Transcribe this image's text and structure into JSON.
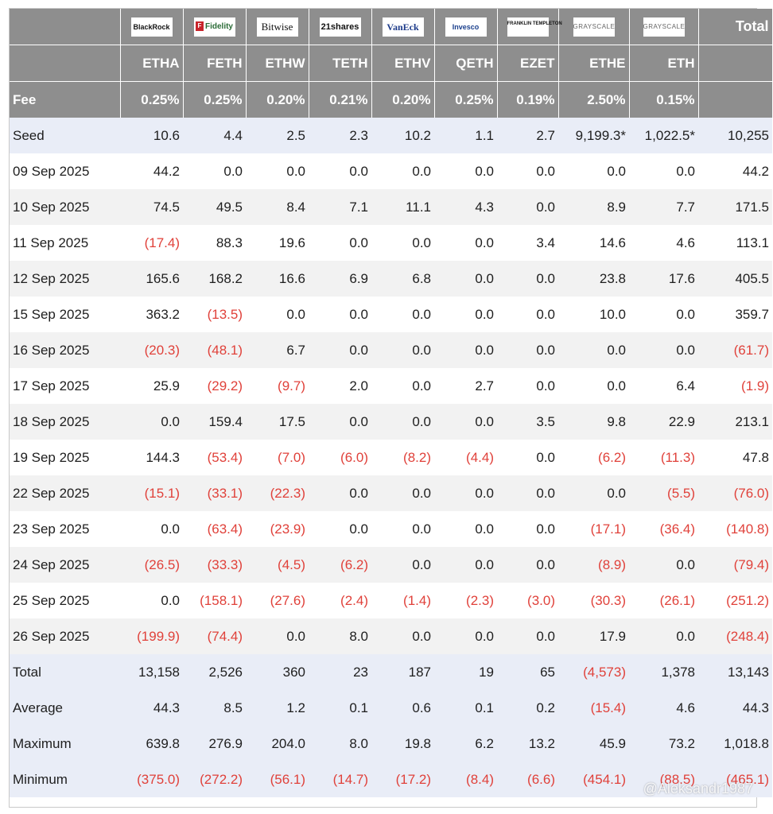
{
  "columns": [
    {
      "logo": "BlackRock",
      "logo_class": "blackrock",
      "ticker": "ETHA",
      "fee": "0.25%"
    },
    {
      "logo": "Fidelity",
      "logo_class": "fidelity",
      "ticker": "FETH",
      "fee": "0.25%"
    },
    {
      "logo": "Bitwise",
      "logo_class": "bitwise",
      "ticker": "ETHW",
      "fee": "0.20%"
    },
    {
      "logo": "21shares",
      "logo_class": "shares",
      "ticker": "TETH",
      "fee": "0.21%"
    },
    {
      "logo": "VanEck",
      "logo_class": "vaneck",
      "ticker": "ETHV",
      "fee": "0.20%"
    },
    {
      "logo": "Invesco",
      "logo_class": "invesco",
      "ticker": "QETH",
      "fee": "0.25%"
    },
    {
      "logo": "FRANKLIN TEMPLETON",
      "logo_class": "franklin",
      "ticker": "EZET",
      "fee": "0.19%"
    },
    {
      "logo": "GRAYSCALE",
      "logo_class": "grayscale",
      "ticker": "ETHE",
      "fee": "2.50%"
    },
    {
      "logo": "GRAYSCALE",
      "logo_class": "grayscale",
      "ticker": "ETH",
      "fee": "0.15%"
    }
  ],
  "header": {
    "total_label": "Total",
    "fee_label": "Fee"
  },
  "rows": [
    {
      "label": "Seed",
      "style": "hl",
      "values": [
        "10.6",
        "4.4",
        "2.5",
        "2.3",
        "10.2",
        "1.1",
        "2.7",
        "9,199.3*",
        "1,022.5*",
        "10,255"
      ]
    },
    {
      "label": "09 Sep 2025",
      "style": "even",
      "values": [
        "44.2",
        "0.0",
        "0.0",
        "0.0",
        "0.0",
        "0.0",
        "0.0",
        "0.0",
        "0.0",
        "44.2"
      ]
    },
    {
      "label": "10 Sep 2025",
      "style": "odd",
      "values": [
        "74.5",
        "49.5",
        "8.4",
        "7.1",
        "11.1",
        "4.3",
        "0.0",
        "8.9",
        "7.7",
        "171.5"
      ]
    },
    {
      "label": "11 Sep 2025",
      "style": "even",
      "values": [
        "(17.4)",
        "88.3",
        "19.6",
        "0.0",
        "0.0",
        "0.0",
        "3.4",
        "14.6",
        "4.6",
        "113.1"
      ]
    },
    {
      "label": "12 Sep 2025",
      "style": "odd",
      "values": [
        "165.6",
        "168.2",
        "16.6",
        "6.9",
        "6.8",
        "0.0",
        "0.0",
        "23.8",
        "17.6",
        "405.5"
      ]
    },
    {
      "label": "15 Sep 2025",
      "style": "even",
      "values": [
        "363.2",
        "(13.5)",
        "0.0",
        "0.0",
        "0.0",
        "0.0",
        "0.0",
        "10.0",
        "0.0",
        "359.7"
      ]
    },
    {
      "label": "16 Sep 2025",
      "style": "odd",
      "values": [
        "(20.3)",
        "(48.1)",
        "6.7",
        "0.0",
        "0.0",
        "0.0",
        "0.0",
        "0.0",
        "0.0",
        "(61.7)"
      ]
    },
    {
      "label": "17 Sep 2025",
      "style": "even",
      "values": [
        "25.9",
        "(29.2)",
        "(9.7)",
        "2.0",
        "0.0",
        "2.7",
        "0.0",
        "0.0",
        "6.4",
        "(1.9)"
      ]
    },
    {
      "label": "18 Sep 2025",
      "style": "odd",
      "values": [
        "0.0",
        "159.4",
        "17.5",
        "0.0",
        "0.0",
        "0.0",
        "3.5",
        "9.8",
        "22.9",
        "213.1"
      ]
    },
    {
      "label": "19 Sep 2025",
      "style": "even",
      "values": [
        "144.3",
        "(53.4)",
        "(7.0)",
        "(6.0)",
        "(8.2)",
        "(4.4)",
        "0.0",
        "(6.2)",
        "(11.3)",
        "47.8"
      ]
    },
    {
      "label": "22 Sep 2025",
      "style": "odd",
      "values": [
        "(15.1)",
        "(33.1)",
        "(22.3)",
        "0.0",
        "0.0",
        "0.0",
        "0.0",
        "0.0",
        "(5.5)",
        "(76.0)"
      ]
    },
    {
      "label": "23 Sep 2025",
      "style": "even",
      "values": [
        "0.0",
        "(63.4)",
        "(23.9)",
        "0.0",
        "0.0",
        "0.0",
        "0.0",
        "(17.1)",
        "(36.4)",
        "(140.8)"
      ]
    },
    {
      "label": "24 Sep 2025",
      "style": "odd",
      "values": [
        "(26.5)",
        "(33.3)",
        "(4.5)",
        "(6.2)",
        "0.0",
        "0.0",
        "0.0",
        "(8.9)",
        "0.0",
        "(79.4)"
      ]
    },
    {
      "label": "25 Sep 2025",
      "style": "even",
      "values": [
        "0.0",
        "(158.1)",
        "(27.6)",
        "(2.4)",
        "(1.4)",
        "(2.3)",
        "(3.0)",
        "(30.3)",
        "(26.1)",
        "(251.2)"
      ]
    },
    {
      "label": "26 Sep 2025",
      "style": "odd",
      "values": [
        "(199.9)",
        "(74.4)",
        "0.0",
        "8.0",
        "0.0",
        "0.0",
        "0.0",
        "17.9",
        "0.0",
        "(248.4)"
      ]
    },
    {
      "label": "Total",
      "style": "hl",
      "values": [
        "13,158",
        "2,526",
        "360",
        "23",
        "187",
        "19",
        "65",
        "(4,573)",
        "1,378",
        "13,143"
      ]
    },
    {
      "label": "Average",
      "style": "hl",
      "values": [
        "44.3",
        "8.5",
        "1.2",
        "0.1",
        "0.6",
        "0.1",
        "0.2",
        "(15.4)",
        "4.6",
        "44.3"
      ]
    },
    {
      "label": "Maximum",
      "style": "hl",
      "values": [
        "639.8",
        "276.9",
        "204.0",
        "8.0",
        "19.8",
        "6.2",
        "13.2",
        "45.9",
        "73.2",
        "1,018.8"
      ]
    },
    {
      "label": "Minimum",
      "style": "hl",
      "values": [
        "(375.0)",
        "(272.2)",
        "(56.1)",
        "(14.7)",
        "(17.2)",
        "(8.4)",
        "(6.6)",
        "(454.1)",
        "(88.5)",
        "(465.1)"
      ]
    }
  ],
  "watermark": "@Aleksandr1987",
  "colors": {
    "header_bg": "#8e8e8e",
    "negative": "#e0413a",
    "highlight_row": "#e9edf7",
    "stripe": "#f2f2f2"
  }
}
